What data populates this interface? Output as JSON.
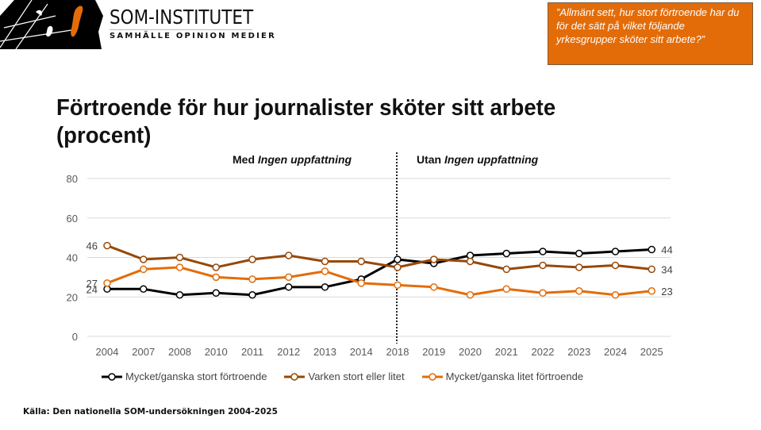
{
  "header": {
    "logo_title": "SOM-INSTITUTET",
    "logo_subtitle": "SAMHÄLLE OPINION MEDIER",
    "question": "”Allmänt sett, hur stort förtroende har du för det sätt på vilket följande yrkesgrupper sköter sitt arbete?”",
    "question_bg": "#e36c09"
  },
  "sections": {
    "left_prefix": "Med ",
    "left_italic": "Ingen uppfattning",
    "right_prefix": "Utan ",
    "right_italic": "Ingen uppfattning"
  },
  "footer": {
    "source": "Källa: Den nationella SOM-undersökningen 2004-2025"
  },
  "chart_data": {
    "type": "line",
    "title": "Förtroende för hur journalister sköter sitt arbete (procent)",
    "xlabel": "",
    "ylabel": "",
    "categories": [
      "2004",
      "2007",
      "2008",
      "2010",
      "2011",
      "2012",
      "2013",
      "2014",
      "2018",
      "2019",
      "2020",
      "2021",
      "2022",
      "2023",
      "2024",
      "2025"
    ],
    "yticks": [
      0,
      20,
      40,
      60,
      80
    ],
    "ylim": [
      0,
      80
    ],
    "grid": true,
    "divider_after": "2014",
    "divider_at": "2018",
    "legend_position": "bottom",
    "series": [
      {
        "name": "Mycket/ganska stort förtroende",
        "color": "#000000",
        "values": [
          24,
          24,
          21,
          22,
          21,
          25,
          25,
          29,
          39,
          37,
          41,
          42,
          43,
          42,
          43,
          44
        ],
        "start_label": "24",
        "end_label": "44"
      },
      {
        "name": "Varken stort eller litet",
        "color": "#974806",
        "values": [
          46,
          39,
          40,
          35,
          39,
          41,
          38,
          38,
          35,
          39,
          38,
          34,
          36,
          35,
          36,
          34
        ],
        "start_label": "46",
        "end_label": "34"
      },
      {
        "name": "Mycket/ganska litet förtroende",
        "color": "#e36c09",
        "values": [
          27,
          34,
          35,
          30,
          29,
          30,
          33,
          27,
          26,
          25,
          21,
          24,
          22,
          23,
          21,
          23
        ],
        "start_label": "27",
        "end_label": "23"
      }
    ]
  }
}
